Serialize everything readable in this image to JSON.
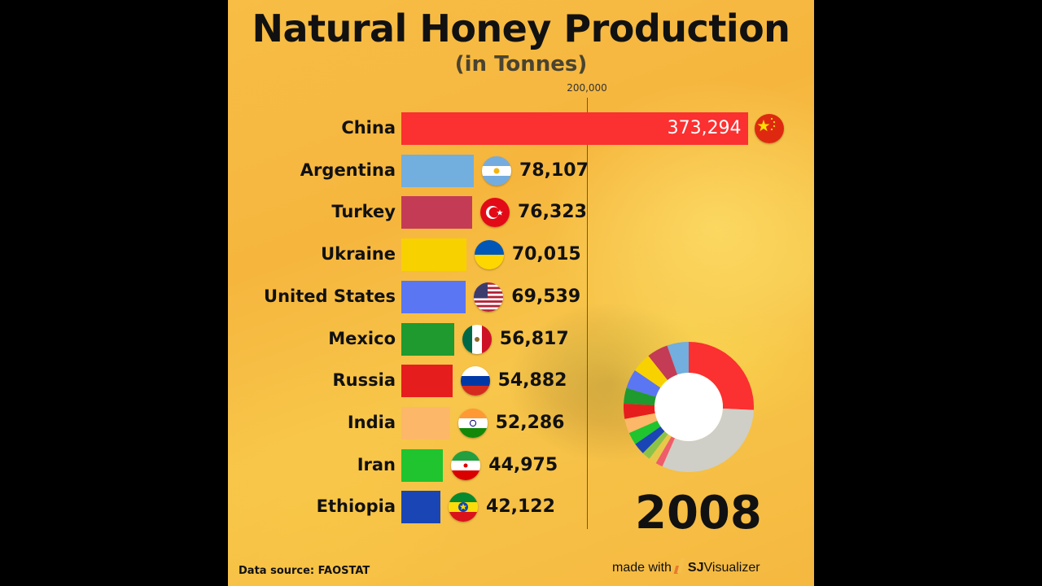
{
  "title": "Natural Honey Production",
  "subtitle": "(in Tonnes)",
  "axis": {
    "tick_label": "200,000",
    "tick_value": 200000
  },
  "year": "2008",
  "source": "Data source: FAOSTAT",
  "credit": {
    "prefix": "made with",
    "brand_bold": "SJ",
    "brand_rest": "Visualizer"
  },
  "rows": [
    {
      "country": "China",
      "value": 373294,
      "value_label": "373,294",
      "color": "#fb3030",
      "flag": "china-flag"
    },
    {
      "country": "Argentina",
      "value": 78107,
      "value_label": "78,107",
      "color": "#72aede",
      "flag": "argentina-flag"
    },
    {
      "country": "Turkey",
      "value": 76323,
      "value_label": "76,323",
      "color": "#c43b56",
      "flag": "turkey-flag"
    },
    {
      "country": "Ukraine",
      "value": 70015,
      "value_label": "70,015",
      "color": "#f8d100",
      "flag": "ukraine-flag"
    },
    {
      "country": "United States",
      "value": 69539,
      "value_label": "69,539",
      "color": "#5a76f2",
      "flag": "usa-flag"
    },
    {
      "country": "Mexico",
      "value": 56817,
      "value_label": "56,817",
      "color": "#1e9a2e",
      "flag": "mexico-flag"
    },
    {
      "country": "Russia",
      "value": 54882,
      "value_label": "54,882",
      "color": "#e61d1d",
      "flag": "russia-flag"
    },
    {
      "country": "India",
      "value": 52286,
      "value_label": "52,286",
      "color": "#fdb768",
      "flag": "india-flag"
    },
    {
      "country": "Iran",
      "value": 44975,
      "value_label": "44,975",
      "color": "#1fc42e",
      "flag": "iran-flag"
    },
    {
      "country": "Ethiopia",
      "value": 42122,
      "value_label": "42,122",
      "color": "#1a46b5",
      "flag": "ethiopia-flag"
    }
  ],
  "chart_data": {
    "type": "bar",
    "orientation": "horizontal",
    "title": "Natural Honey Production",
    "subtitle": "(in Tonnes)",
    "year": 2008,
    "categories": [
      "China",
      "Argentina",
      "Turkey",
      "Ukraine",
      "United States",
      "Mexico",
      "Russia",
      "India",
      "Iran",
      "Ethiopia"
    ],
    "values": [
      373294,
      78107,
      76323,
      70015,
      69539,
      56817,
      54882,
      52286,
      44975,
      42122
    ],
    "xlabel": "",
    "ylabel": "",
    "xticks": [
      200000
    ],
    "grid": true,
    "source": "FAOSTAT",
    "secondary": {
      "type": "donut",
      "description": "share of world production; China largest slice, remaining world in grey"
    }
  }
}
